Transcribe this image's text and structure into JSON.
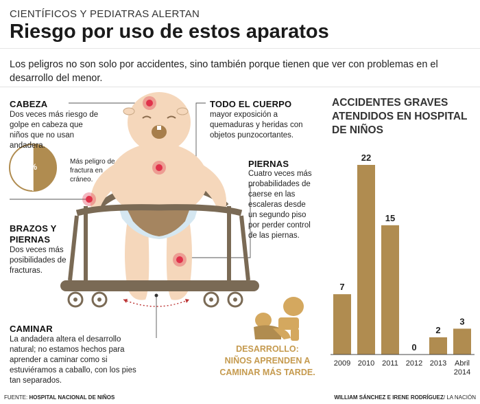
{
  "header": {
    "kicker": "CIENTÍFICOS Y PEDIATRAS ALERTAN",
    "title": "Riesgo por uso de estos aparatos",
    "intro": "Los peligros no son solo por accidentes, sino también porque tienen que ver con problemas en el desarrollo del menor."
  },
  "callouts": {
    "cabeza": {
      "title": "CABEZA",
      "text": "Dos veces más riesgo de golpe en cabeza que niños que no usan andadera."
    },
    "pie": {
      "percent": "50%",
      "text": "Más peligro de fractura en cráneo."
    },
    "todo_el_cuerpo": {
      "title": "TODO EL CUERPO",
      "text": "mayor exposición a quemaduras y heridas con objetos punzocortantes."
    },
    "piernas": {
      "title": "PIERNAS",
      "text": "Cuatro veces más probabilidades de caerse en las escaleras desde un segundo piso por perder control de las piernas."
    },
    "brazos": {
      "title": "BRAZOS Y PIERNAS",
      "text": "Dos veces más posibilidades de fracturas."
    },
    "caminar": {
      "title": "CAMINAR",
      "text": "La andadera altera el desarrollo natural; no estamos hechos para aprender a caminar como si estuviéramos a caballo, con los pies tan separados."
    },
    "desarrollo": {
      "line1": "DESARROLLO:",
      "line2": "NIÑOS APRENDEN A",
      "line3": "CAMINAR MÁS TARDE."
    }
  },
  "footer": {
    "source_label": "FUENTE: ",
    "source": "HOSPITAL NACIONAL DE NIÑOS",
    "credits": "WILLIAM SÁNCHEZ E IRENE RODRÍGUEZ",
    "outlet": "/ LA NACIÓN"
  },
  "colors": {
    "accent": "#b08c50",
    "accent_dark": "#9b7a3e",
    "skin": "#f5d7bb",
    "hotspot": "#e0324a",
    "text": "#222222"
  },
  "chart_data": {
    "type": "bar",
    "title": "ACCIDENTES GRAVES ATENDIDOS EN HOSPITAL DE NIÑOS",
    "categories": [
      "2009",
      "2010",
      "2011",
      "2012",
      "2013",
      "Abril 2014"
    ],
    "values": [
      7,
      22,
      15,
      0,
      2,
      3
    ],
    "ylim": [
      0,
      22
    ],
    "grid": false,
    "xlabel": "",
    "ylabel": "",
    "color": "#b08c50"
  }
}
